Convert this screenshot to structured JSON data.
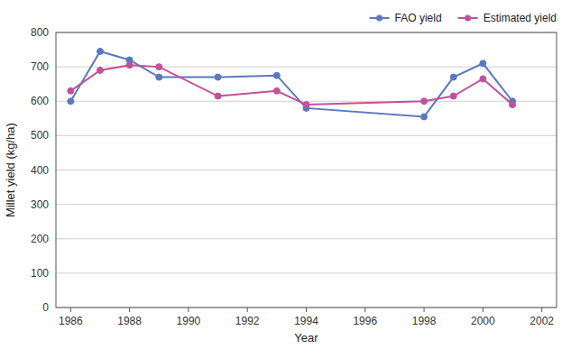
{
  "chart_data": {
    "type": "line",
    "xlabel": "Year",
    "ylabel": "Millet yield (kg/ha)",
    "x": [
      1986,
      1987,
      1988,
      1989,
      1991,
      1993,
      1994,
      1998,
      1999,
      2000,
      2001
    ],
    "series": [
      {
        "name": "FAO yield",
        "color": "#5b78c0",
        "values": [
          600,
          745,
          720,
          670,
          670,
          675,
          580,
          555,
          670,
          710,
          600
        ]
      },
      {
        "name": "Estimated yield",
        "color": "#c0519a",
        "values": [
          630,
          690,
          705,
          700,
          615,
          630,
          590,
          600,
          615,
          665,
          590
        ]
      }
    ],
    "xlim": [
      1985.5,
      2002.5
    ],
    "ylim": [
      0,
      800
    ],
    "xticks": [
      1986,
      1988,
      1990,
      1992,
      1994,
      1996,
      1998,
      2000,
      2002
    ],
    "yticks": [
      0,
      100,
      200,
      300,
      400,
      500,
      600,
      700,
      800
    ],
    "grid": true,
    "legend": "upper right",
    "marker": "circle"
  }
}
